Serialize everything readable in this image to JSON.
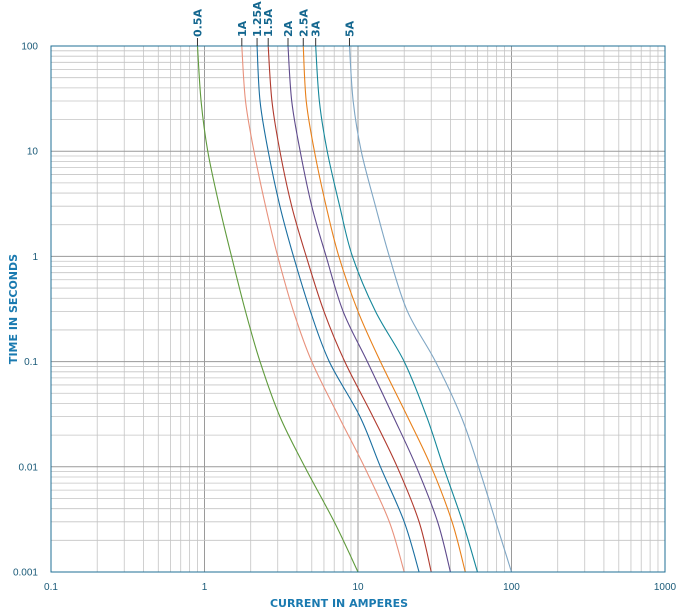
{
  "chart_data": {
    "type": "line",
    "xlabel": "CURRENT IN AMPERES",
    "ylabel": "TIME IN SECONDS",
    "x_scale": "log",
    "y_scale": "log",
    "xlim": [
      0.1,
      1000
    ],
    "ylim": [
      0.001,
      100
    ],
    "x_ticks": [
      "0.1",
      "1",
      "10",
      "100",
      "1000"
    ],
    "y_ticks": [
      "0.001",
      "0.01",
      "0.1",
      "1",
      "10",
      "100"
    ],
    "grid": true,
    "colors": {
      "frame": "#1f6f96",
      "grid_major": "#9a9a9a",
      "grid_minor": "#c4c4c4"
    },
    "series": [
      {
        "name": "0.5A",
        "color": "#5f9a3c",
        "points": [
          [
            0.9,
            100
          ],
          [
            0.95,
            30
          ],
          [
            1.05,
            10
          ],
          [
            1.25,
            3
          ],
          [
            1.5,
            1
          ],
          [
            1.85,
            0.3
          ],
          [
            2.3,
            0.1
          ],
          [
            3.1,
            0.03
          ],
          [
            4.5,
            0.01
          ],
          [
            7,
            0.003
          ],
          [
            10,
            0.001
          ]
        ]
      },
      {
        "name": "1A",
        "color": "#e8917c",
        "points": [
          [
            1.75,
            100
          ],
          [
            1.85,
            30
          ],
          [
            2.1,
            10
          ],
          [
            2.5,
            3
          ],
          [
            3,
            1
          ],
          [
            3.8,
            0.3
          ],
          [
            5,
            0.1
          ],
          [
            7.5,
            0.03
          ],
          [
            11,
            0.01
          ],
          [
            16,
            0.003
          ],
          [
            20,
            0.001
          ]
        ]
      },
      {
        "name": "1.25A",
        "color": "#1a6ea0",
        "points": [
          [
            2.2,
            100
          ],
          [
            2.3,
            30
          ],
          [
            2.6,
            10
          ],
          [
            3.1,
            3
          ],
          [
            3.8,
            1
          ],
          [
            4.9,
            0.3
          ],
          [
            6.5,
            0.1
          ],
          [
            10.3,
            0.03
          ],
          [
            14,
            0.01
          ],
          [
            20,
            0.003
          ],
          [
            25,
            0.001
          ]
        ]
      },
      {
        "name": "1.5A",
        "color": "#b03a2e",
        "points": [
          [
            2.6,
            100
          ],
          [
            2.75,
            30
          ],
          [
            3.1,
            10
          ],
          [
            3.7,
            3
          ],
          [
            4.6,
            1
          ],
          [
            6,
            0.3
          ],
          [
            8.2,
            0.1
          ],
          [
            12.5,
            0.03
          ],
          [
            18,
            0.01
          ],
          [
            25,
            0.003
          ],
          [
            30,
            0.001
          ]
        ]
      },
      {
        "name": "2A",
        "color": "#5e4a8c",
        "points": [
          [
            3.5,
            100
          ],
          [
            3.7,
            30
          ],
          [
            4.2,
            10
          ],
          [
            5,
            3
          ],
          [
            6.2,
            1
          ],
          [
            8,
            0.3
          ],
          [
            11.5,
            0.1
          ],
          [
            17,
            0.03
          ],
          [
            24,
            0.01
          ],
          [
            33,
            0.003
          ],
          [
            40,
            0.001
          ]
        ]
      },
      {
        "name": "2.5A",
        "color": "#e8801a",
        "points": [
          [
            4.4,
            100
          ],
          [
            4.6,
            30
          ],
          [
            5.2,
            10
          ],
          [
            6.2,
            3
          ],
          [
            7.5,
            1
          ],
          [
            10,
            0.3
          ],
          [
            14,
            0.1
          ],
          [
            21,
            0.03
          ],
          [
            30,
            0.01
          ],
          [
            41,
            0.003
          ],
          [
            50,
            0.001
          ]
        ]
      },
      {
        "name": "3A",
        "color": "#15879a",
        "points": [
          [
            5.3,
            100
          ],
          [
            5.6,
            30
          ],
          [
            6.3,
            10
          ],
          [
            7.6,
            3
          ],
          [
            9.2,
            1
          ],
          [
            13,
            0.3
          ],
          [
            20,
            0.1
          ],
          [
            28,
            0.03
          ],
          [
            36,
            0.01
          ],
          [
            48,
            0.003
          ],
          [
            60,
            0.001
          ]
        ]
      },
      {
        "name": "5A",
        "color": "#7fa6c4",
        "points": [
          [
            8.8,
            100
          ],
          [
            9.3,
            30
          ],
          [
            10.5,
            10
          ],
          [
            13,
            3
          ],
          [
            16,
            1
          ],
          [
            21,
            0.3
          ],
          [
            32,
            0.1
          ],
          [
            47,
            0.03
          ],
          [
            61,
            0.01
          ],
          [
            79,
            0.003
          ],
          [
            100,
            0.001
          ]
        ]
      }
    ]
  }
}
